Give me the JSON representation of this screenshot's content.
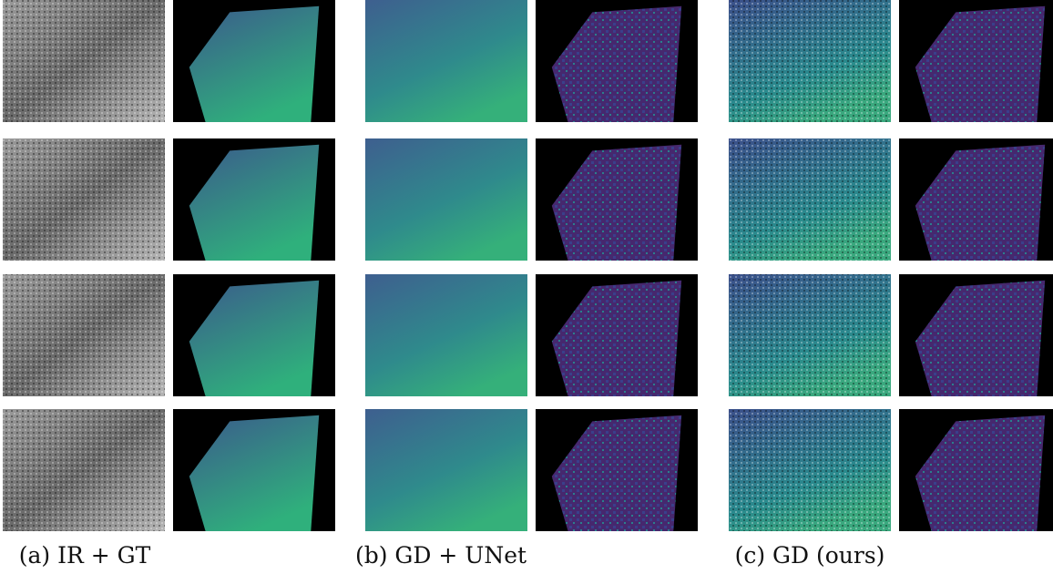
{
  "figure": {
    "panels": [
      {
        "caption": "(a) IR + GT"
      },
      {
        "caption": "(b) GD + UNet"
      },
      {
        "caption": "(c) GD (ours)"
      }
    ]
  }
}
